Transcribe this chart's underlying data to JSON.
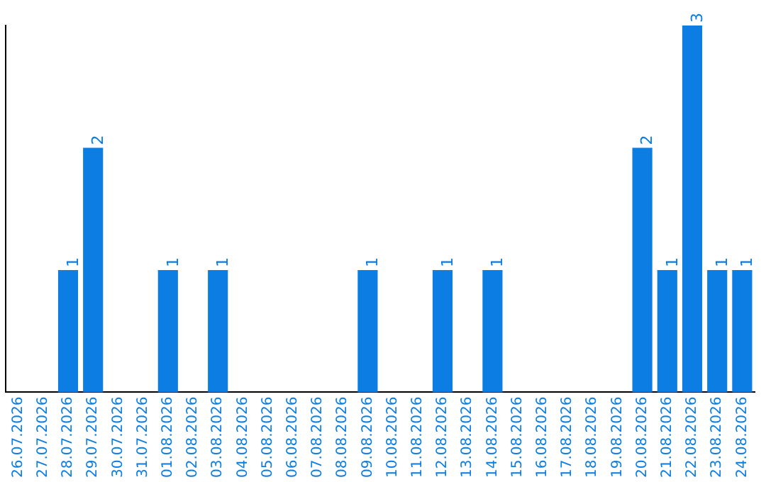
{
  "chart_data": {
    "type": "bar",
    "categories": [
      "26.07.2026",
      "27.07.2026",
      "28.07.2026",
      "29.07.2026",
      "30.07.2026",
      "31.07.2026",
      "01.08.2026",
      "02.08.2026",
      "03.08.2026",
      "04.08.2026",
      "05.08.2026",
      "06.08.2026",
      "07.08.2026",
      "08.08.2026",
      "09.08.2026",
      "10.08.2026",
      "11.08.2026",
      "12.08.2026",
      "13.08.2026",
      "14.08.2026",
      "15.08.2026",
      "16.08.2026",
      "17.08.2026",
      "18.08.2026",
      "19.08.2026",
      "20.08.2026",
      "21.08.2026",
      "22.08.2026",
      "23.08.2026",
      "24.08.2026"
    ],
    "values": [
      0,
      0,
      1,
      2,
      0,
      0,
      1,
      0,
      1,
      0,
      0,
      0,
      0,
      0,
      1,
      0,
      0,
      1,
      0,
      1,
      0,
      0,
      0,
      0,
      0,
      2,
      1,
      3,
      1,
      1
    ],
    "value_labels": [
      null,
      null,
      "1",
      "2",
      null,
      null,
      "1",
      null,
      "1",
      null,
      null,
      null,
      null,
      null,
      "1",
      null,
      null,
      "1",
      null,
      "1",
      null,
      null,
      null,
      null,
      null,
      "2",
      "1",
      "3",
      "1",
      "1"
    ],
    "color": "#0b7de3",
    "ylim": [
      0,
      3
    ],
    "tick_labels": "x",
    "grid": false,
    "legend": false
  }
}
